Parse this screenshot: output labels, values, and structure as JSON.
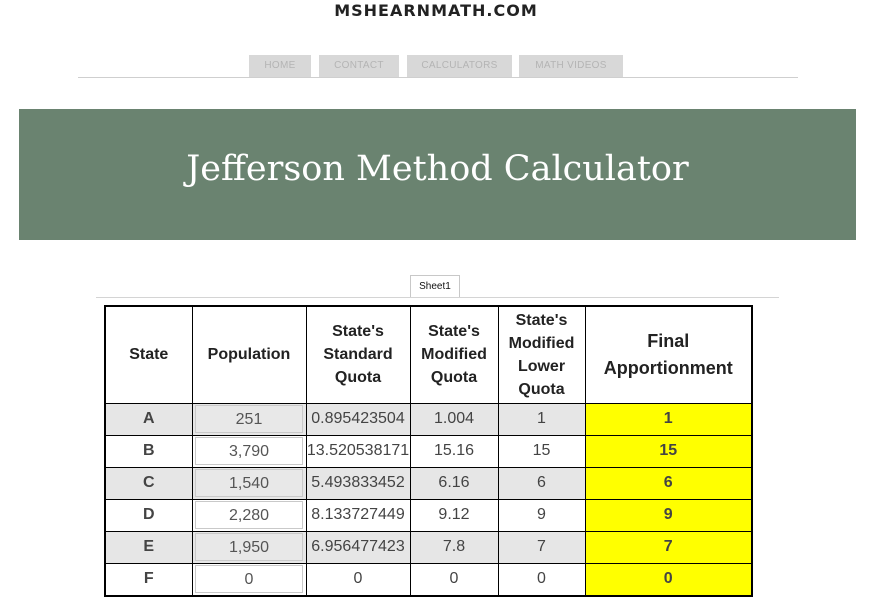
{
  "site": {
    "title": "MSHEARNMATH.COM"
  },
  "nav": {
    "tabs": [
      "HOME",
      "CONTACT",
      "CALCULATORS",
      "MATH VIDEOS"
    ]
  },
  "banner": {
    "title": "Jefferson Method Calculator"
  },
  "sheet": {
    "tab_label": "Sheet1"
  },
  "table": {
    "headers": {
      "state": "State",
      "population": "Population",
      "standard_quota": "State's Standard Quota",
      "modified_quota": "State's Modified Quota",
      "modified_lower_quota": "State's Modified Lower Quota",
      "final": "Final Apportionment"
    },
    "rows": [
      {
        "state": "A",
        "population": "251",
        "standard_quota": "0.895423504",
        "modified_quota": "1.004",
        "lower": "1",
        "final": "1"
      },
      {
        "state": "B",
        "population": "3,790",
        "standard_quota": "13.520538171",
        "modified_quota": "15.16",
        "lower": "15",
        "final": "15"
      },
      {
        "state": "C",
        "population": "1,540",
        "standard_quota": "5.493833452",
        "modified_quota": "6.16",
        "lower": "6",
        "final": "6"
      },
      {
        "state": "D",
        "population": "2,280",
        "standard_quota": "8.133727449",
        "modified_quota": "9.12",
        "lower": "9",
        "final": "9"
      },
      {
        "state": "E",
        "population": "1,950",
        "standard_quota": "6.956477423",
        "modified_quota": "7.8",
        "lower": "7",
        "final": "7"
      },
      {
        "state": "F",
        "population": "0",
        "standard_quota": "0",
        "modified_quota": "0",
        "lower": "0",
        "final": "0"
      }
    ]
  },
  "colors": {
    "banner": "#6a8370",
    "final_highlight": "#ffff00",
    "shaded_row": "#e6e6e6"
  }
}
